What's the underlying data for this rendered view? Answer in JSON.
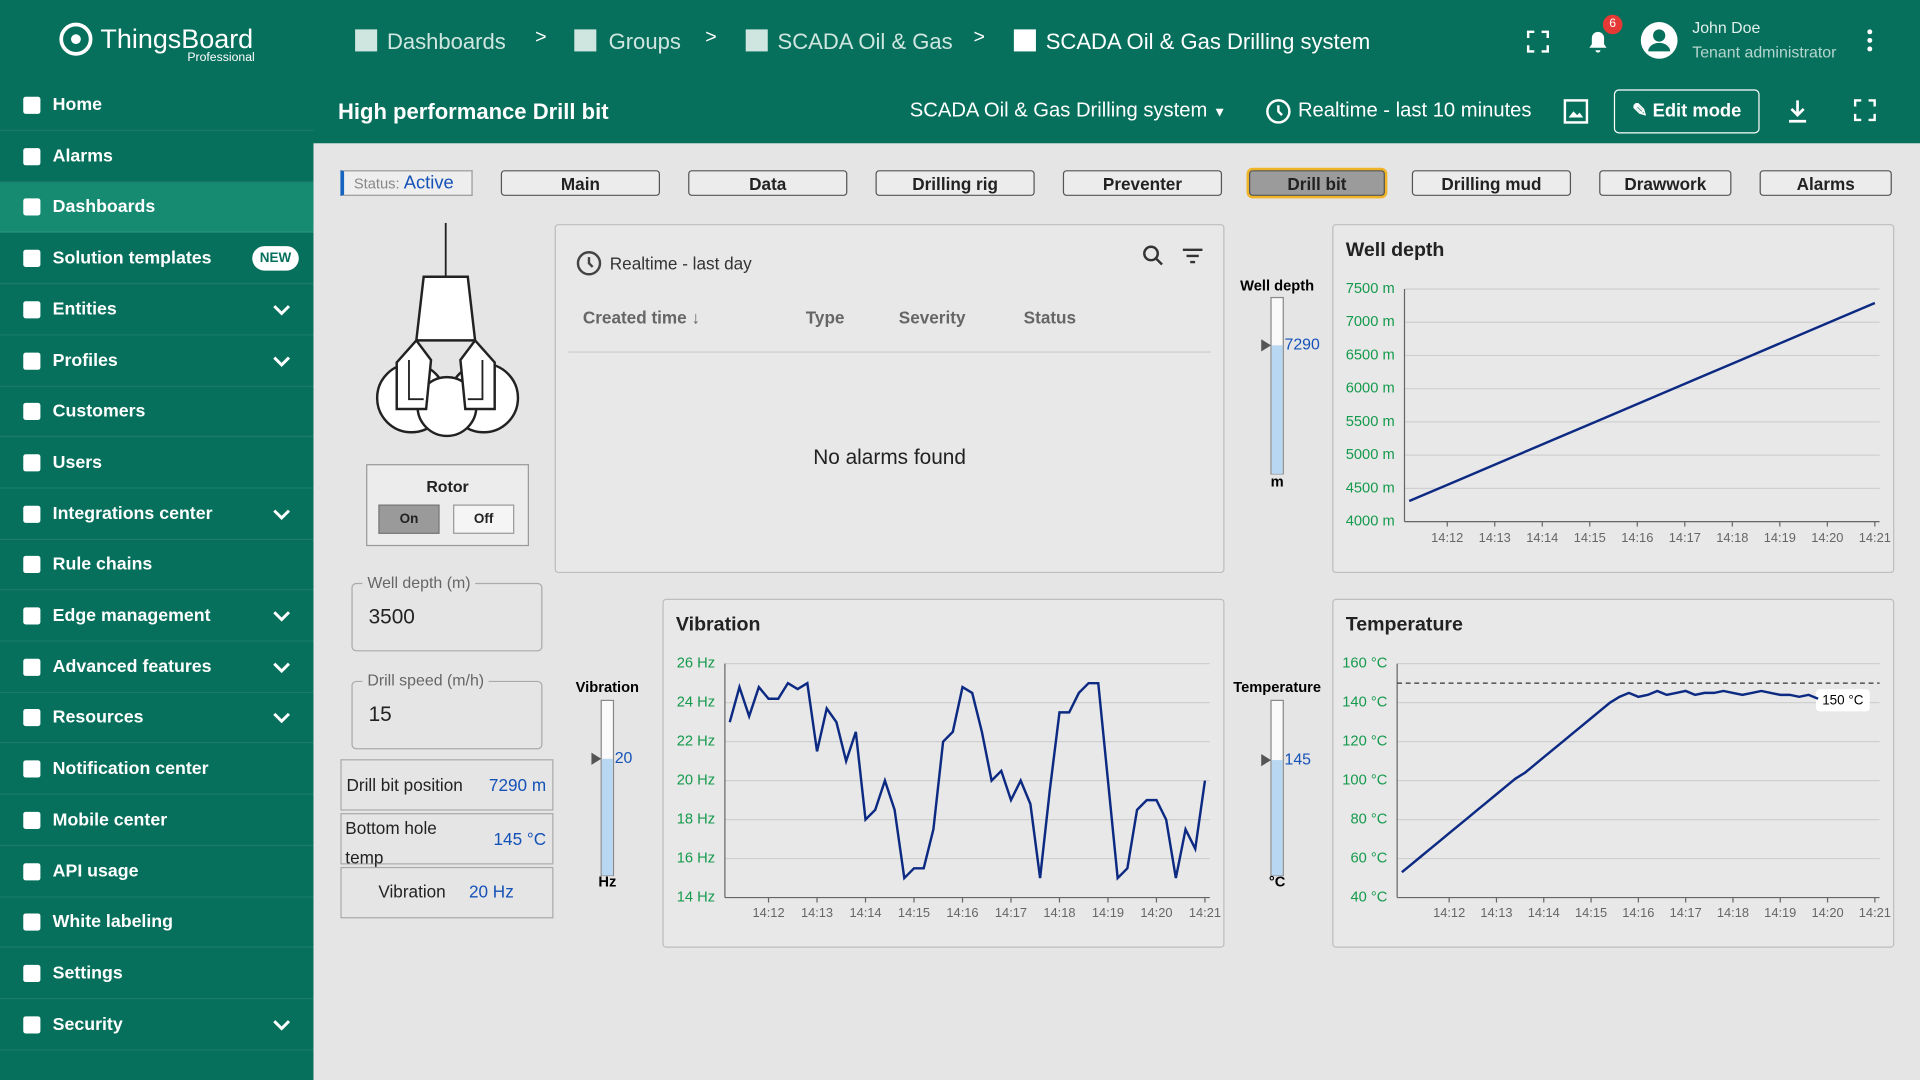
{
  "header": {
    "logo": "ThingsBoard",
    "edition": "Professional",
    "breadcrumbs": [
      "Dashboards",
      "Groups",
      "SCADA Oil & Gas",
      "SCADA Oil & Gas Drilling system"
    ],
    "breadcrumb_separator": ">",
    "notifications": "6",
    "user_name": "John Doe",
    "user_role": "Tenant administrator"
  },
  "sidebar": [
    {
      "label": "Home"
    },
    {
      "label": "Alarms"
    },
    {
      "label": "Dashboards",
      "selected": true
    },
    {
      "label": "Solution templates",
      "badge": "NEW"
    },
    {
      "label": "Entities",
      "has_submenu": true
    },
    {
      "label": "Profiles",
      "has_submenu": true
    },
    {
      "label": "Customers"
    },
    {
      "label": "Users"
    },
    {
      "label": "Integrations center",
      "has_submenu": true
    },
    {
      "label": "Rule chains"
    },
    {
      "label": "Edge management",
      "has_submenu": true
    },
    {
      "label": "Advanced features",
      "has_submenu": true
    },
    {
      "label": "Resources",
      "has_submenu": true
    },
    {
      "label": "Notification center"
    },
    {
      "label": "Mobile center"
    },
    {
      "label": "API usage"
    },
    {
      "label": "White labeling"
    },
    {
      "label": "Settings"
    },
    {
      "label": "Security",
      "has_submenu": true
    }
  ],
  "toolbar": {
    "title": "High performance Drill bit",
    "dashboard": "SCADA Oil & Gas Drilling system",
    "timewindow": "Realtime - last 10 minutes",
    "edit": "Edit mode"
  },
  "nav": {
    "status_label": "Status:",
    "status_value": "Active",
    "buttons": [
      "Main",
      "Data",
      "Drilling rig",
      "Preventer",
      "Drill bit",
      "Drilling mud",
      "Drawwork",
      "Alarms"
    ],
    "selected": 4
  },
  "rotor": {
    "title": "Rotor",
    "on": "On",
    "off": "Off"
  },
  "inputs": [
    {
      "label": "Well depth (m)",
      "value": "3500"
    },
    {
      "label": "Drill speed (m/h)",
      "value": "15"
    }
  ],
  "readouts": [
    [
      "Drill bit position",
      "7290 m"
    ],
    [
      "Bottom hole temp",
      "145 °C"
    ],
    [
      "Vibration",
      "20 Hz"
    ]
  ],
  "alarms": {
    "timewindow": "Realtime - last day",
    "columns": [
      "Created time",
      "Type",
      "Severity",
      "Status"
    ],
    "empty": "No alarms found"
  },
  "gauges": [
    {
      "label": "Well depth",
      "value": 7290,
      "unit": "m",
      "lim": [
        0,
        10000
      ]
    },
    {
      "label": "Vibration",
      "value": 20,
      "unit": "Hz",
      "lim": [
        0,
        30
      ]
    },
    {
      "label": "Temperature",
      "value": 145,
      "unit": "°C",
      "lim": [
        0,
        220
      ]
    }
  ],
  "chart_data": [
    {
      "type": "line",
      "title": "Well depth",
      "color": "#0d2a83",
      "grid": true,
      "x": [
        851.2,
        852.2,
        853.2,
        854.2,
        855.2,
        856.2,
        857.2,
        858.2,
        859.2,
        860.2,
        861
      ],
      "values": [
        4310,
        4614,
        4918,
        5222,
        5526,
        5830,
        6134,
        6438,
        6742,
        7046,
        7290
      ],
      "xlim": [
        851.1,
        861.1
      ],
      "xticks": [
        {
          "value": 852,
          "label": "14:12"
        },
        {
          "value": 853,
          "label": "14:13"
        },
        {
          "value": 854,
          "label": "14:14"
        },
        {
          "value": 855,
          "label": "14:15"
        },
        {
          "value": 856,
          "label": "14:16"
        },
        {
          "value": 857,
          "label": "14:17"
        },
        {
          "value": 858,
          "label": "14:18"
        },
        {
          "value": 859,
          "label": "14:19"
        },
        {
          "value": 860,
          "label": "14:20"
        },
        {
          "value": 861,
          "label": "14:21"
        }
      ],
      "ylim": [
        4000,
        7500
      ],
      "yticks": [
        {
          "value": 4000,
          "label": "4000 m"
        },
        {
          "value": 4500,
          "label": "4500 m"
        },
        {
          "value": 5000,
          "label": "5000 m"
        },
        {
          "value": 5500,
          "label": "5500 m"
        },
        {
          "value": 6000,
          "label": "6000 m"
        },
        {
          "value": 6500,
          "label": "6500 m"
        },
        {
          "value": 7000,
          "label": "7000 m"
        },
        {
          "value": 7500,
          "label": "7500 m"
        }
      ]
    },
    {
      "type": "line",
      "title": "Vibration",
      "color": "#0d2a83",
      "grid": true,
      "x": [
        851.2,
        851.4,
        851.6,
        851.8,
        852,
        852.2,
        852.4,
        852.6,
        852.8,
        853,
        853.2,
        853.4,
        853.6,
        853.8,
        854,
        854.2,
        854.4,
        854.6,
        854.8,
        855,
        855.2,
        855.4,
        855.6,
        855.8,
        856,
        856.2,
        856.4,
        856.6,
        856.8,
        857,
        857.2,
        857.4,
        857.6,
        857.8,
        858,
        858.2,
        858.4,
        858.6,
        858.8,
        859,
        859.2,
        859.4,
        859.6,
        859.8,
        860,
        860.2,
        860.4,
        860.6,
        860.8,
        861
      ],
      "values": [
        23,
        24.8,
        23.3,
        24.8,
        24.2,
        24.2,
        25,
        24.7,
        25,
        21.5,
        23.7,
        23,
        21,
        22.5,
        18,
        18.5,
        20,
        18.5,
        15,
        15.5,
        15.5,
        17.5,
        22,
        22.5,
        24.8,
        24.5,
        22.5,
        20,
        20.5,
        19,
        20,
        18.8,
        15,
        19.5,
        23.5,
        23.5,
        24.5,
        25,
        25,
        20,
        15,
        15.5,
        18.5,
        19,
        19,
        18,
        15,
        17.5,
        16.5,
        20
      ],
      "xlim": [
        851.1,
        861.1
      ],
      "xticks": [
        {
          "value": 852,
          "label": "14:12"
        },
        {
          "value": 853,
          "label": "14:13"
        },
        {
          "value": 854,
          "label": "14:14"
        },
        {
          "value": 855,
          "label": "14:15"
        },
        {
          "value": 856,
          "label": "14:16"
        },
        {
          "value": 857,
          "label": "14:17"
        },
        {
          "value": 858,
          "label": "14:18"
        },
        {
          "value": 859,
          "label": "14:19"
        },
        {
          "value": 860,
          "label": "14:20"
        },
        {
          "value": 861,
          "label": "14:21"
        }
      ],
      "ylim": [
        14,
        26
      ],
      "yticks": [
        {
          "value": 14,
          "label": "14 Hz"
        },
        {
          "value": 16,
          "label": "16 Hz"
        },
        {
          "value": 18,
          "label": "18 Hz"
        },
        {
          "value": 20,
          "label": "20 Hz"
        },
        {
          "value": 22,
          "label": "22 Hz"
        },
        {
          "value": 24,
          "label": "24 Hz"
        },
        {
          "value": 26,
          "label": "26 Hz"
        }
      ]
    },
    {
      "type": "line",
      "title": "Temperature",
      "color": "#0d2a83",
      "grid": true,
      "x": [
        851,
        851.2,
        851.4,
        851.6,
        851.8,
        852,
        852.2,
        852.4,
        852.6,
        852.8,
        853,
        853.2,
        853.4,
        853.6,
        853.8,
        854,
        854.2,
        854.4,
        854.6,
        854.8,
        855,
        855.2,
        855.4,
        855.6,
        855.8,
        856,
        856.2,
        856.4,
        856.6,
        856.8,
        857,
        857.2,
        857.4,
        857.6,
        857.8,
        858,
        858.2,
        858.4,
        858.6,
        858.8,
        859,
        859.2,
        859.4,
        859.6,
        859.8
      ],
      "values": [
        53,
        57,
        61,
        65,
        69,
        73,
        77,
        81,
        85,
        89,
        93,
        97,
        101,
        104,
        108,
        112,
        116,
        120,
        124,
        128,
        132,
        136,
        140,
        143,
        145,
        143,
        144,
        146,
        144,
        145,
        146,
        144,
        145,
        145,
        146,
        145,
        144,
        145,
        146,
        145,
        144,
        144,
        143,
        144,
        142
      ],
      "threshold": {
        "value": 150,
        "label": "150 °C"
      },
      "xlim": [
        850.9,
        861.1
      ],
      "xticks": [
        {
          "value": 852,
          "label": "14:12"
        },
        {
          "value": 853,
          "label": "14:13"
        },
        {
          "value": 854,
          "label": "14:14"
        },
        {
          "value": 855,
          "label": "14:15"
        },
        {
          "value": 856,
          "label": "14:16"
        },
        {
          "value": 857,
          "label": "14:17"
        },
        {
          "value": 858,
          "label": "14:18"
        },
        {
          "value": 859,
          "label": "14:19"
        },
        {
          "value": 860,
          "label": "14:20"
        },
        {
          "value": 861,
          "label": "14:21"
        }
      ],
      "ylim": [
        40,
        160
      ],
      "yticks": [
        {
          "value": 40,
          "label": "40 °C"
        },
        {
          "value": 60,
          "label": "60 °C"
        },
        {
          "value": 80,
          "label": "80 °C"
        },
        {
          "value": 100,
          "label": "100 °C"
        },
        {
          "value": 120,
          "label": "120 °C"
        },
        {
          "value": 140,
          "label": "140 °C"
        },
        {
          "value": 160,
          "label": "160 °C"
        }
      ]
    }
  ]
}
